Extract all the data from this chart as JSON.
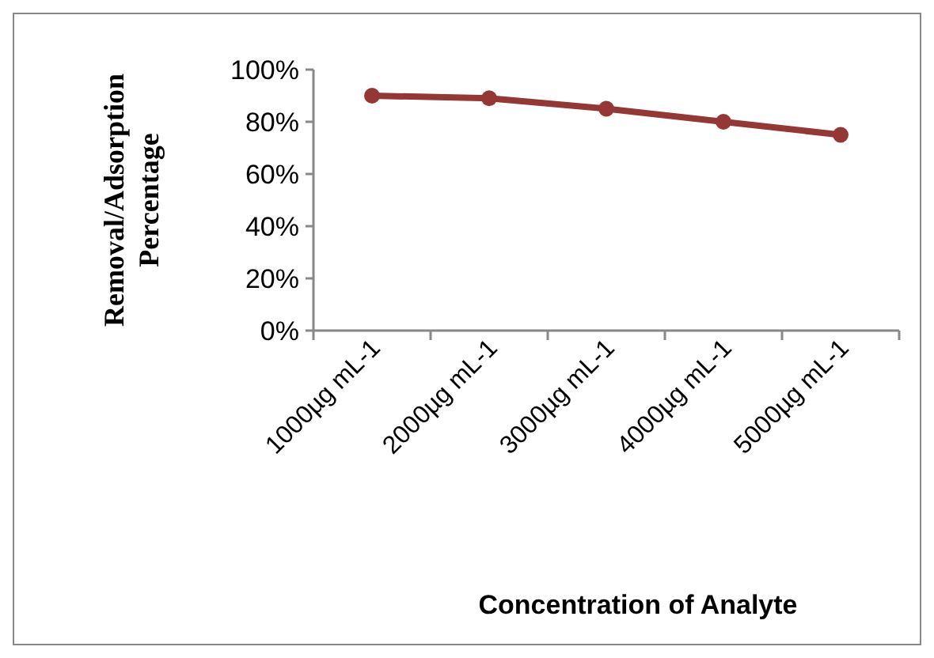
{
  "chart_data": {
    "type": "line",
    "xlabel": "Concentration of Analyte",
    "ylabel": "Removal/Adsorption Percentage",
    "categories": [
      "1000µg mL-1",
      "2000µg mL-1",
      "3000µg mL-1",
      "4000µg mL-1",
      "5000µg mL-1"
    ],
    "series": [
      {
        "color": "#953735",
        "values": [
          90,
          89,
          85,
          80,
          75
        ]
      }
    ],
    "ylim": [
      0,
      100
    ],
    "yticks": [
      {
        "value": 0,
        "label": "0%"
      },
      {
        "value": 20,
        "label": "20%"
      },
      {
        "value": 40,
        "label": "40%"
      },
      {
        "value": 60,
        "label": "60%"
      },
      {
        "value": 80,
        "label": "80%"
      },
      {
        "value": 100,
        "label": "100%"
      }
    ],
    "grid": false,
    "marker": "circle",
    "line_style": "solid"
  }
}
